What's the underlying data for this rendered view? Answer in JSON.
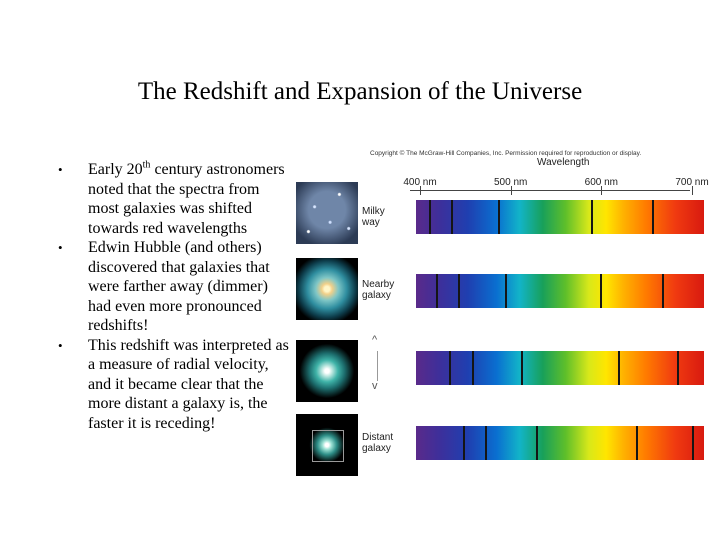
{
  "slide": {
    "title": "The Redshift and Expansion of the Universe",
    "bullets": [
      {
        "pre": "Early 20",
        "sup": "th",
        "post": " century astronomers noted that the spectra from most galaxies was shifted towards red wavelengths"
      },
      {
        "text": "Edwin Hubble (and others) discovered that galaxies that were farther away (dimmer) had even more pronounced redshifts!"
      },
      {
        "text": "This redshift was interpreted as a measure of radial velocity, and it became clear that the more distant a galaxy is, the faster it is receding!"
      }
    ],
    "bullet_symbol": "•"
  },
  "figure": {
    "copyright": "Copyright © The McGraw-Hill Companies, Inc. Permission required for reproduction or display.",
    "axis_title": "Wavelength",
    "ticks": [
      {
        "label": "400 nm",
        "nm": 400
      },
      {
        "label": "500 nm",
        "nm": 500
      },
      {
        "label": "600 nm",
        "nm": 600
      },
      {
        "label": "700 nm",
        "nm": 700
      }
    ],
    "galaxies": [
      {
        "label_line1": "Milky",
        "label_line2": "way",
        "lines_nm": [
          410,
          434,
          486,
          589,
          656
        ]
      },
      {
        "label_line1": "Nearby",
        "label_line2": "galaxy",
        "lines_nm": [
          418,
          442,
          494,
          599,
          667
        ]
      },
      {
        "label_line1": "",
        "label_line2": "",
        "lines_nm": []
      },
      {
        "label_line1": "Distant",
        "label_line2": "galaxy",
        "lines_nm": [
          447,
          472,
          528,
          638,
          700
        ]
      }
    ],
    "between_arrows": {
      "up": "^",
      "down": "v"
    }
  }
}
